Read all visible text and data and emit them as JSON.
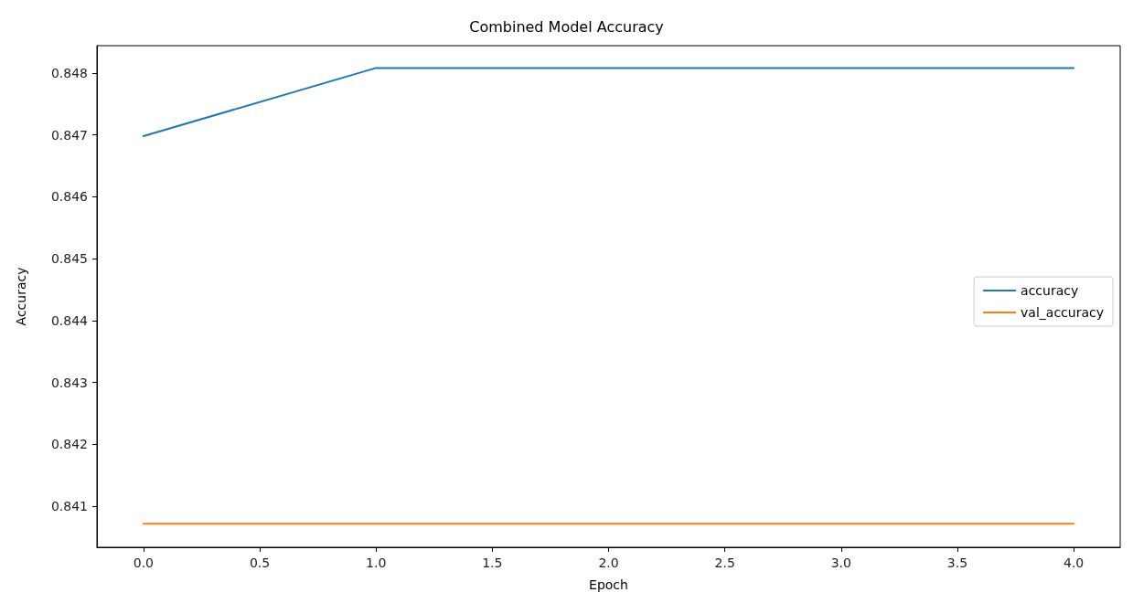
{
  "chart_data": {
    "type": "line",
    "title": "Combined Model Accuracy",
    "xlabel": "Epoch",
    "ylabel": "Accuracy",
    "x": [
      0,
      1,
      2,
      3,
      4
    ],
    "series": [
      {
        "name": "accuracy",
        "color": "#1f77b4",
        "values": [
          0.84698,
          0.84808,
          0.84808,
          0.84808,
          0.84808
        ]
      },
      {
        "name": "val_accuracy",
        "color": "#ff7f0e",
        "values": [
          0.84072,
          0.84072,
          0.84072,
          0.84072,
          0.84072
        ]
      }
    ],
    "xlim": [
      -0.2,
      4.2
    ],
    "xticks": [
      {
        "value": 0,
        "label": "0.0"
      },
      {
        "value": 0.5,
        "label": "0.5"
      },
      {
        "value": 1,
        "label": "1.0"
      },
      {
        "value": 1.5,
        "label": "1.5"
      },
      {
        "value": 2,
        "label": "2.0"
      },
      {
        "value": 2.5,
        "label": "2.5"
      },
      {
        "value": 3,
        "label": "3.0"
      },
      {
        "value": 3.5,
        "label": "3.5"
      },
      {
        "value": 4,
        "label": "4.0"
      }
    ],
    "ylim": [
      0.84034,
      0.84844
    ],
    "yticks": [
      0.841,
      0.842,
      0.843,
      0.844,
      0.845,
      0.846,
      0.847,
      0.848
    ],
    "grid": false,
    "legend": "right",
    "marker": "none",
    "line_style": "solid"
  }
}
